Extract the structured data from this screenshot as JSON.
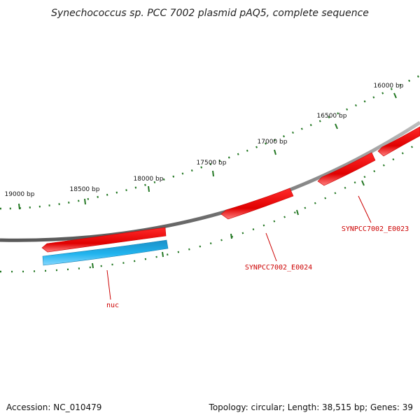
{
  "title": "Synechococcus sp. PCC 7002 plasmid pAQ5, complete sequence",
  "ticks": [
    "19000 bp",
    "18500 bp",
    "18000 bp",
    "17500 bp",
    "17000 bp",
    "16500 bp",
    "16000 bp"
  ],
  "genes": [
    {
      "name": "nuc",
      "strand": "forward"
    },
    {
      "name": "SYNPCC7002_E0024",
      "strand": "reverse"
    },
    {
      "name": "SYNPCC7002_E0023",
      "strand": "reverse"
    }
  ],
  "colors": {
    "reverse_gene": "#ee1111",
    "forward_gene": "#22aaee",
    "backbone": "#888888",
    "ticks": "#227722",
    "gene_label": "#cc0000"
  },
  "footer": {
    "accession": "Accession: NC_010479",
    "summary": "Topology: circular; Length: 38,515 bp; Genes: 39"
  }
}
